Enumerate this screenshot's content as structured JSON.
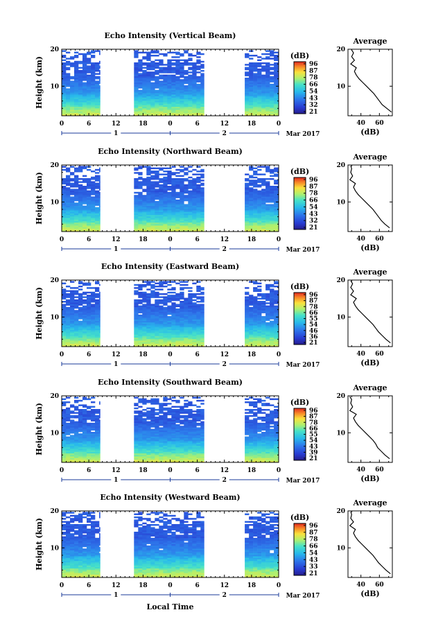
{
  "chart_data": [
    {
      "type": "heatmap",
      "title": "Echo Intensity (Vertical Beam)",
      "ylabel": "Height (km)",
      "ylim": [
        2,
        20
      ],
      "ytick_labels": [
        "10",
        "20"
      ],
      "ytick_values": [
        10,
        20
      ],
      "xlim_hours": [
        0,
        48
      ],
      "xtick_labels": [
        "0",
        "6",
        "12",
        "18",
        "0",
        "6",
        "12",
        "18",
        "0"
      ],
      "date_labels": [
        "1",
        "2"
      ],
      "month_label": "Mar 2017",
      "data_segments_hours": [
        [
          0,
          8.5
        ],
        [
          16,
          31.5
        ],
        [
          40.5,
          48
        ]
      ],
      "colorbar": {
        "label": "(dB)",
        "range": [
          21,
          96
        ],
        "tick_labels": [
          "96",
          "87",
          "78",
          "66",
          "54",
          "43",
          "32",
          "21"
        ]
      },
      "profile": {
        "title": "Average",
        "xlabel": "(dB)",
        "xlim": [
          26,
          74
        ],
        "xtick_labels": [
          "40",
          "60"
        ],
        "xtick_values": [
          40,
          60
        ],
        "ytick_labels": [
          "10",
          "20"
        ],
        "heights": [
          3,
          4,
          5,
          6,
          7,
          8,
          9,
          10,
          11,
          12,
          13,
          14,
          15,
          16,
          17,
          18,
          19,
          19.8
        ],
        "values": [
          73,
          68,
          63,
          60,
          57,
          54,
          50,
          46,
          42,
          38,
          35,
          33,
          35,
          29,
          33,
          30,
          32,
          30
        ]
      }
    },
    {
      "type": "heatmap",
      "title": "Echo Intensity (Northward Beam)",
      "ylabel": "Height (km)",
      "ylim": [
        2,
        20
      ],
      "ytick_labels": [
        "10",
        "20"
      ],
      "ytick_values": [
        10,
        20
      ],
      "xlim_hours": [
        0,
        48
      ],
      "xtick_labels": [
        "0",
        "6",
        "12",
        "18",
        "0",
        "6",
        "12",
        "18",
        "0"
      ],
      "date_labels": [
        "1",
        "2"
      ],
      "month_label": "Mar 2017",
      "data_segments_hours": [
        [
          0,
          8.5
        ],
        [
          16,
          31.5
        ],
        [
          40.5,
          48
        ]
      ],
      "colorbar": {
        "label": "(dB)",
        "range": [
          21,
          96
        ],
        "tick_labels": [
          "96",
          "87",
          "78",
          "66",
          "54",
          "43",
          "32",
          "21"
        ]
      },
      "profile": {
        "title": "Average",
        "xlabel": "(dB)",
        "xlim": [
          26,
          74
        ],
        "xtick_labels": [
          "40",
          "60"
        ],
        "xtick_values": [
          40,
          60
        ],
        "ytick_labels": [
          "10",
          "20"
        ],
        "heights": [
          3,
          4,
          5,
          6,
          7,
          8,
          9,
          10,
          11,
          12,
          13,
          14,
          15,
          16,
          17,
          18,
          19,
          19.8
        ],
        "values": [
          71,
          66,
          62,
          59,
          56,
          53,
          49,
          45,
          41,
          37,
          34,
          32,
          34,
          28,
          31,
          29,
          30,
          29
        ]
      }
    },
    {
      "type": "heatmap",
      "title": "Echo Intensity (Eastward Beam)",
      "ylabel": "Height (km)",
      "ylim": [
        2,
        20
      ],
      "ytick_labels": [
        "10",
        "20"
      ],
      "ytick_values": [
        10,
        20
      ],
      "xlim_hours": [
        0,
        48
      ],
      "xtick_labels": [
        "0",
        "6",
        "12",
        "18",
        "0",
        "6",
        "12",
        "18",
        "0"
      ],
      "date_labels": [
        "1",
        "2"
      ],
      "month_label": "Mar 2017",
      "data_segments_hours": [
        [
          0,
          8.5
        ],
        [
          16,
          31.5
        ],
        [
          40.5,
          48
        ]
      ],
      "colorbar": {
        "label": "(dB)",
        "range": [
          21,
          96
        ],
        "tick_labels": [
          "96",
          "87",
          "78",
          "66",
          "55",
          "54",
          "46",
          "36",
          "21"
        ]
      },
      "profile": {
        "title": "Average",
        "xlabel": "(dB)",
        "xlim": [
          26,
          74
        ],
        "xtick_labels": [
          "40",
          "60"
        ],
        "xtick_values": [
          40,
          60
        ],
        "ytick_labels": [
          "10",
          "20"
        ],
        "heights": [
          3,
          4,
          5,
          6,
          7,
          8,
          9,
          10,
          11,
          12,
          13,
          14,
          15,
          16,
          17,
          18,
          19,
          19.8
        ],
        "values": [
          72,
          67,
          63,
          59,
          56,
          53,
          49,
          45,
          41,
          37,
          34,
          32,
          35,
          29,
          32,
          29,
          31,
          29
        ]
      }
    },
    {
      "type": "heatmap",
      "title": "Echo Intensity (Southward Beam)",
      "ylabel": "Height (km)",
      "ylim": [
        2,
        20
      ],
      "ytick_labels": [
        "10",
        "20"
      ],
      "ytick_values": [
        10,
        20
      ],
      "xlim_hours": [
        0,
        48
      ],
      "xtick_labels": [
        "0",
        "6",
        "12",
        "18",
        "0",
        "6",
        "12",
        "18",
        "0"
      ],
      "date_labels": [
        "1",
        "2"
      ],
      "month_label": "Mar 2017",
      "data_segments_hours": [
        [
          0,
          8.5
        ],
        [
          16,
          31.5
        ],
        [
          40.5,
          48
        ]
      ],
      "colorbar": {
        "label": "(dB)",
        "range": [
          21,
          96
        ],
        "tick_labels": [
          "96",
          "87",
          "78",
          "66",
          "55",
          "54",
          "43",
          "39",
          "21"
        ]
      },
      "profile": {
        "title": "Average",
        "xlabel": "(dB)",
        "xlim": [
          26,
          74
        ],
        "xtick_labels": [
          "40",
          "60"
        ],
        "xtick_values": [
          40,
          60
        ],
        "ytick_labels": [
          "10",
          "20"
        ],
        "heights": [
          3,
          4,
          5,
          6,
          7,
          8,
          9,
          10,
          11,
          12,
          13,
          14,
          15,
          16,
          17,
          18,
          19,
          19.8
        ],
        "values": [
          71,
          66,
          62,
          58,
          56,
          53,
          49,
          45,
          41,
          37,
          34,
          32,
          35,
          28,
          31,
          29,
          30,
          28
        ]
      }
    },
    {
      "type": "heatmap",
      "title": "Echo Intensity (Westward Beam)",
      "ylabel": "Height (km)",
      "ylim": [
        2,
        20
      ],
      "ytick_labels": [
        "10",
        "20"
      ],
      "ytick_values": [
        10,
        20
      ],
      "xlim_hours": [
        0,
        48
      ],
      "xtick_labels": [
        "0",
        "6",
        "12",
        "18",
        "0",
        "6",
        "12",
        "18",
        "0"
      ],
      "date_labels": [
        "1",
        "2"
      ],
      "month_label": "Mar 2017",
      "xlabel": "Local Time",
      "data_segments_hours": [
        [
          0,
          8.5
        ],
        [
          16,
          31.5
        ],
        [
          40.5,
          48
        ]
      ],
      "colorbar": {
        "label": "(dB)",
        "range": [
          21,
          96
        ],
        "tick_labels": [
          "96",
          "87",
          "78",
          "66",
          "54",
          "43",
          "33",
          "21"
        ]
      },
      "profile": {
        "title": "Average",
        "xlabel": "(dB)",
        "xlim": [
          26,
          74
        ],
        "xtick_labels": [
          "40",
          "60"
        ],
        "xtick_values": [
          40,
          60
        ],
        "ytick_labels": [
          "10",
          "20"
        ],
        "heights": [
          3,
          4,
          5,
          6,
          7,
          8,
          9,
          10,
          11,
          12,
          13,
          14,
          15,
          16,
          17,
          18,
          19,
          19.8
        ],
        "values": [
          72,
          67,
          63,
          59,
          56,
          53,
          49,
          45,
          41,
          37,
          34,
          32,
          34,
          28,
          32,
          29,
          30,
          29
        ]
      }
    }
  ]
}
